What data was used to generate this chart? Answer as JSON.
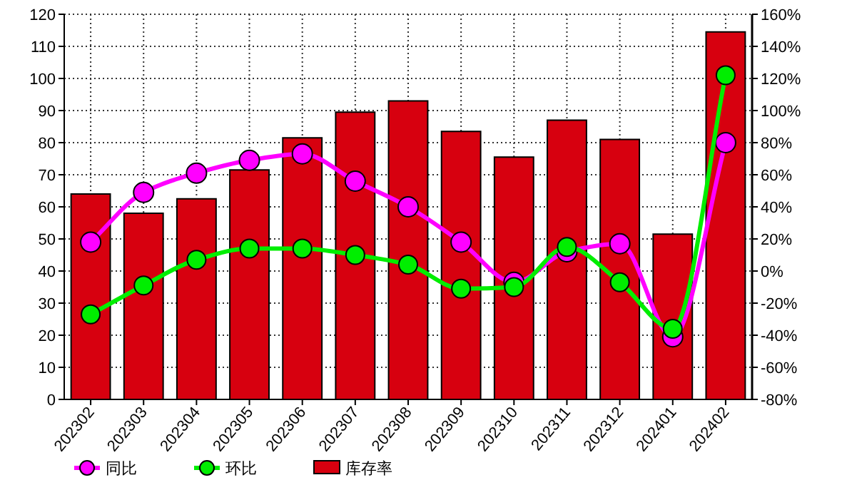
{
  "chart_data": {
    "type": "bar",
    "categories": [
      "202302",
      "202303",
      "202304",
      "202305",
      "202306",
      "202307",
      "202308",
      "202309",
      "202310",
      "202311",
      "202312",
      "202401",
      "202402"
    ],
    "series": [
      {
        "name": "同比",
        "type": "line",
        "axis": "y2",
        "color": "#ff00ff",
        "values": [
          18,
          49,
          61,
          69,
          73,
          56,
          40,
          18,
          -7,
          12,
          17,
          -41,
          80
        ]
      },
      {
        "name": "环比",
        "type": "line",
        "axis": "y2",
        "color": "#00ee00",
        "values": [
          -27,
          -9,
          7,
          14,
          14,
          10,
          4,
          -11,
          -10,
          15,
          -7,
          -36,
          122
        ]
      },
      {
        "name": "库存率",
        "color": "#d7000f",
        "values": [
          64,
          58,
          62.5,
          71.5,
          81.5,
          89.5,
          93,
          83.5,
          75.5,
          87,
          81,
          51.5,
          114.5
        ]
      }
    ],
    "ylim": [
      0,
      120
    ],
    "yticks": [
      0,
      10,
      20,
      30,
      40,
      50,
      60,
      70,
      80,
      90,
      100,
      110,
      120
    ],
    "y2lim": [
      -80,
      160
    ],
    "y2ticks": [
      {
        "value": -80,
        "label": "-80%"
      },
      {
        "value": -60,
        "label": "-60%"
      },
      {
        "value": -40,
        "label": "-40%"
      },
      {
        "value": -20,
        "label": "-20%"
      },
      {
        "value": 0,
        "label": "0%"
      },
      {
        "value": 20,
        "label": "20%"
      },
      {
        "value": 40,
        "label": "40%"
      },
      {
        "value": 60,
        "label": "60%"
      },
      {
        "value": 80,
        "label": "80%"
      },
      {
        "value": 100,
        "label": "100%"
      },
      {
        "value": 120,
        "label": "120%"
      },
      {
        "value": 140,
        "label": "140%"
      },
      {
        "value": 160,
        "label": "160%"
      }
    ],
    "grid": true,
    "legend": "bottom left",
    "marker": "circle"
  }
}
